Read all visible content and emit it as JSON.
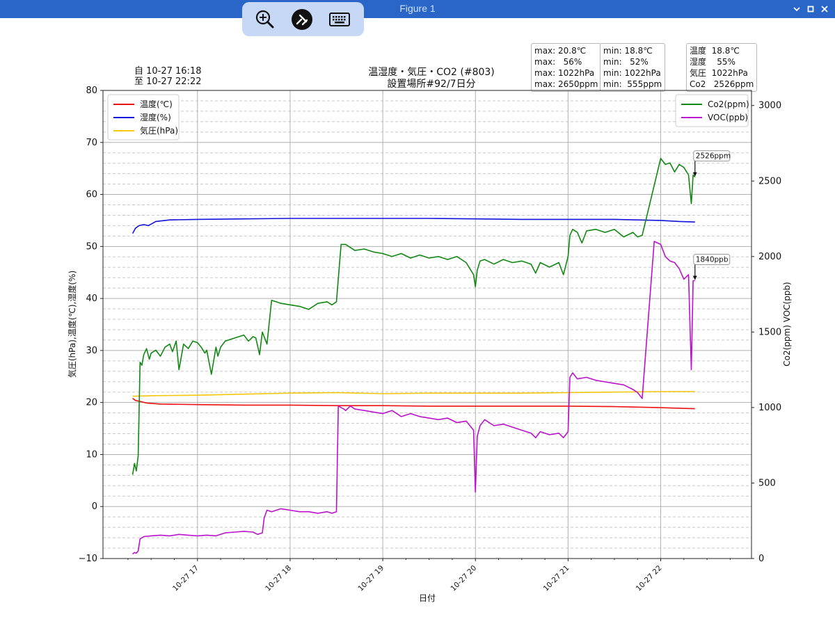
{
  "window": {
    "title": "Figure 1",
    "controls": [
      "chevron-down-icon",
      "maximize-icon",
      "close-icon"
    ]
  },
  "floating_toolbar": {
    "buttons": [
      {
        "name": "zoom-in-button",
        "icon": "zoom-in-icon"
      },
      {
        "name": "remote-connection-button",
        "icon": "connection-icon"
      },
      {
        "name": "keyboard-button",
        "icon": "keyboard-icon"
      }
    ]
  },
  "stats": {
    "max_lines": [
      "max: 20.8℃",
      "max:   56%",
      "max: 1022hPa",
      "max: 2650ppm"
    ],
    "min_lines": [
      "min: 18.8℃",
      "min:   52%",
      "min: 1022hPa",
      "min:  555ppm"
    ],
    "current_lines": [
      "温度  18.8℃",
      "湿度    55%",
      "気圧  1022hPa",
      "Co2   2526ppm"
    ]
  },
  "date_range": {
    "from": "自 10-27 16:18",
    "to": "至 10-27 22:22"
  },
  "chart_data": {
    "type": "line",
    "title": "温湿度・気圧・CO2 (#803)",
    "subtitle": "設置場所#92/7日分",
    "xlabel": "日付",
    "ylabel_left": "気圧(hPa),温度(℃),湿度(%)",
    "ylabel_right": "Co2(ppm) VOC(ppb)",
    "x_ticks": [
      "10-27 17",
      "10-27 18",
      "10-27 19",
      "10-27 20",
      "10-27 21",
      "10-27 22"
    ],
    "x_tick_hours": [
      17,
      18,
      19,
      20,
      21,
      22
    ],
    "xlim_hours": [
      15.98,
      22.98
    ],
    "ylim_left": [
      -10,
      80
    ],
    "yticks_left": [
      -10,
      0,
      10,
      20,
      30,
      40,
      50,
      60,
      70,
      80
    ],
    "ylim_right": [
      0,
      3100
    ],
    "yticks_right": [
      0,
      500,
      1000,
      1500,
      2000,
      2500,
      3000
    ],
    "grid": true,
    "legend_left": [
      "温度(℃)",
      "湿度(%)",
      "気圧(hPa)"
    ],
    "legend_right": [
      "Co2(ppm)",
      "VOC(ppb)"
    ],
    "legend_left_position": "upper-left",
    "legend_right_position": "upper-right",
    "colors": {
      "temp": "#ee1111",
      "hum": "#1111dd",
      "press": "#f5c60a",
      "co2": "#118811",
      "voc": "#bb11cc"
    },
    "series": [
      {
        "name": "温度(℃)",
        "axis": "left",
        "x": [
          16.3,
          16.33,
          16.38,
          16.45,
          16.6,
          17.0,
          17.5,
          18.0,
          18.5,
          19.0,
          19.5,
          20.0,
          20.5,
          21.0,
          21.5,
          22.0,
          22.2,
          22.37
        ],
        "y": [
          20.8,
          20.4,
          20.2,
          19.9,
          19.7,
          19.6,
          19.5,
          19.5,
          19.4,
          19.4,
          19.3,
          19.3,
          19.3,
          19.3,
          19.2,
          19.0,
          18.9,
          18.8
        ]
      },
      {
        "name": "湿度(%)",
        "axis": "left",
        "x": [
          16.3,
          16.33,
          16.37,
          16.42,
          16.47,
          16.55,
          16.7,
          17.0,
          17.5,
          18.0,
          18.5,
          19.0,
          19.5,
          20.0,
          20.5,
          21.0,
          21.5,
          22.0,
          22.2,
          22.37
        ],
        "y": [
          52.5,
          53.5,
          54.0,
          54.2,
          54.0,
          54.8,
          55.1,
          55.2,
          55.3,
          55.4,
          55.4,
          55.4,
          55.4,
          55.3,
          55.2,
          55.2,
          55.2,
          55.0,
          54.8,
          54.7
        ]
      },
      {
        "name": "気圧(hPa)",
        "axis": "left",
        "x": [
          16.3,
          16.5,
          17.0,
          17.5,
          18.0,
          18.5,
          19.0,
          19.5,
          20.0,
          20.5,
          21.0,
          21.5,
          22.0,
          22.37
        ],
        "y": [
          21.2,
          21.3,
          21.4,
          21.6,
          21.8,
          21.9,
          21.7,
          21.8,
          21.8,
          21.8,
          21.9,
          22.0,
          22.1,
          22.1
        ]
      },
      {
        "name": "Co2(ppm)",
        "axis": "right",
        "x": [
          16.3,
          16.32,
          16.34,
          16.36,
          16.38,
          16.4,
          16.42,
          16.45,
          16.48,
          16.5,
          16.55,
          16.6,
          16.65,
          16.7,
          16.73,
          16.77,
          16.8,
          16.85,
          16.9,
          16.95,
          17.0,
          17.04,
          17.08,
          17.1,
          17.15,
          17.2,
          17.22,
          17.25,
          17.3,
          17.4,
          17.5,
          17.55,
          17.6,
          17.63,
          17.67,
          17.7,
          17.75,
          17.8,
          17.85,
          17.9,
          18.0,
          18.1,
          18.2,
          18.3,
          18.4,
          18.45,
          18.5,
          18.55,
          18.6,
          18.7,
          18.8,
          18.9,
          19.0,
          19.1,
          19.2,
          19.3,
          19.4,
          19.5,
          19.6,
          19.7,
          19.8,
          19.9,
          19.98,
          20.0,
          20.02,
          20.05,
          20.1,
          20.2,
          20.3,
          20.4,
          20.5,
          20.6,
          20.65,
          20.7,
          20.8,
          20.9,
          20.95,
          21.0,
          21.02,
          21.05,
          21.1,
          21.15,
          21.2,
          21.3,
          21.4,
          21.5,
          21.6,
          21.7,
          21.75,
          21.8,
          22.0,
          22.05,
          22.1,
          22.15,
          22.2,
          22.25,
          22.3,
          22.33,
          22.35,
          22.37
        ],
        "y": [
          555,
          630,
          580,
          680,
          1300,
          1280,
          1350,
          1390,
          1320,
          1360,
          1380,
          1340,
          1400,
          1420,
          1370,
          1440,
          1250,
          1420,
          1390,
          1440,
          1430,
          1400,
          1360,
          1380,
          1220,
          1400,
          1340,
          1400,
          1440,
          1460,
          1480,
          1440,
          1470,
          1460,
          1350,
          1500,
          1420,
          1710,
          1700,
          1690,
          1680,
          1670,
          1650,
          1690,
          1700,
          1680,
          1700,
          2080,
          2080,
          2040,
          2050,
          2030,
          2020,
          2000,
          2020,
          1990,
          2010,
          1990,
          2000,
          1980,
          2000,
          1960,
          1880,
          1800,
          1910,
          1970,
          1980,
          1950,
          1980,
          1960,
          1970,
          1950,
          1890,
          1960,
          1930,
          1960,
          1880,
          2000,
          2140,
          2180,
          2160,
          2090,
          2170,
          2180,
          2160,
          2180,
          2130,
          2160,
          2130,
          2140,
          2650,
          2610,
          2620,
          2560,
          2610,
          2590,
          2540,
          2350,
          2540,
          2526
        ]
      },
      {
        "name": "VOC(ppb)",
        "axis": "right",
        "x": [
          16.3,
          16.32,
          16.34,
          16.36,
          16.38,
          16.42,
          16.5,
          16.6,
          16.7,
          16.8,
          16.9,
          17.0,
          17.1,
          17.2,
          17.3,
          17.4,
          17.5,
          17.6,
          17.65,
          17.7,
          17.72,
          17.75,
          17.8,
          17.9,
          18.0,
          18.1,
          18.2,
          18.3,
          18.4,
          18.45,
          18.5,
          18.52,
          18.55,
          18.58,
          18.6,
          18.65,
          18.7,
          18.8,
          18.9,
          19.0,
          19.1,
          19.2,
          19.3,
          19.4,
          19.5,
          19.6,
          19.7,
          19.8,
          19.9,
          19.98,
          20.0,
          20.02,
          20.05,
          20.1,
          20.2,
          20.3,
          20.4,
          20.5,
          20.6,
          20.65,
          20.7,
          20.8,
          20.9,
          20.95,
          21.0,
          21.02,
          21.05,
          21.1,
          21.2,
          21.3,
          21.4,
          21.5,
          21.6,
          21.7,
          21.75,
          21.8,
          21.93,
          22.0,
          22.05,
          22.1,
          22.15,
          22.2,
          22.25,
          22.3,
          22.33,
          22.35,
          22.37
        ],
        "y": [
          30,
          40,
          35,
          50,
          130,
          145,
          150,
          155,
          150,
          160,
          155,
          150,
          155,
          150,
          170,
          175,
          180,
          175,
          160,
          170,
          270,
          320,
          310,
          330,
          320,
          310,
          310,
          300,
          310,
          300,
          310,
          1010,
          1000,
          990,
          980,
          1010,
          990,
          980,
          970,
          960,
          980,
          940,
          960,
          940,
          930,
          920,
          930,
          900,
          910,
          850,
          440,
          810,
          880,
          920,
          880,
          890,
          870,
          850,
          830,
          800,
          840,
          820,
          830,
          800,
          840,
          1200,
          1230,
          1190,
          1200,
          1180,
          1170,
          1160,
          1150,
          1120,
          1100,
          1060,
          2100,
          2080,
          2000,
          1970,
          1960,
          1920,
          1850,
          1880,
          1250,
          1840,
          1840
        ]
      }
    ],
    "annotations": [
      {
        "text": "2526ppm",
        "x_hours": 22.37,
        "y_right": 2526
      },
      {
        "text": "1840ppb",
        "x_hours": 22.37,
        "y_right": 1840
      }
    ]
  }
}
